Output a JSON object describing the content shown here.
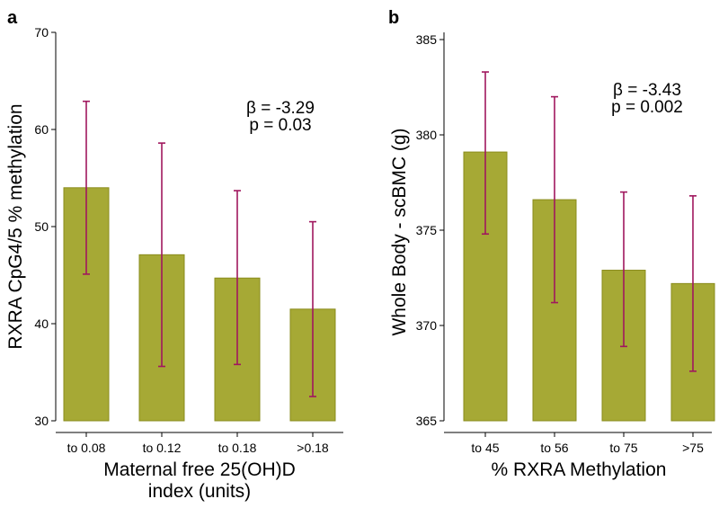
{
  "colors": {
    "bar": "#a6a935",
    "bar_edge": "#8a8c1c",
    "error_bar": "#a0175e"
  },
  "chart_data": [
    {
      "type": "bar",
      "panel_label": "a",
      "categories": [
        "to 0.08",
        "to 0.12",
        "to 0.18",
        ">0.18"
      ],
      "values": [
        54.0,
        47.1,
        44.7,
        41.5
      ],
      "error_low": [
        45.1,
        35.6,
        35.8,
        32.5
      ],
      "error_high": [
        62.9,
        58.6,
        53.7,
        50.5
      ],
      "ylim": [
        30,
        70
      ],
      "yticks": [
        30,
        40,
        50,
        60,
        70
      ],
      "ylabel": "RXRA CpG4/5 % methylation",
      "xlabel_line1": "Maternal free 25(OH)D",
      "xlabel_line2": "index (units)",
      "annotation_line1": "β = -3.29",
      "annotation_line2": "p = 0.03"
    },
    {
      "type": "bar",
      "panel_label": "b",
      "categories": [
        "to 45",
        "to 56",
        "to 75",
        ">75"
      ],
      "values": [
        379.1,
        376.6,
        372.9,
        372.2
      ],
      "error_low": [
        374.8,
        371.2,
        368.9,
        367.6
      ],
      "error_high": [
        383.3,
        382.0,
        377.0,
        376.8
      ],
      "ylim": [
        365,
        385
      ],
      "yticks": [
        365,
        370,
        375,
        380,
        385
      ],
      "ylabel": "Whole Body - scBMC (g)",
      "xlabel_line1": "% RXRA Methylation",
      "xlabel_line2": "",
      "annotation_line1": "β = -3.43",
      "annotation_line2": "p = 0.002"
    }
  ]
}
